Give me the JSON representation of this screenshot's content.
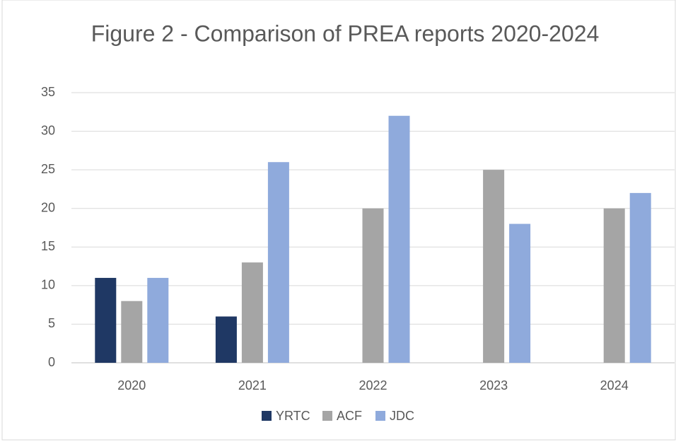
{
  "chart_data": {
    "type": "bar",
    "title": "Figure 2 - Comparison of PREA reports 2020-2024",
    "categories": [
      "2020",
      "2021",
      "2022",
      "2023",
      "2024"
    ],
    "series": [
      {
        "name": "YRTC",
        "color": "#1f3864",
        "values": [
          11,
          6,
          0,
          0,
          0
        ]
      },
      {
        "name": "ACF",
        "color": "#a5a5a5",
        "values": [
          8,
          13,
          20,
          25,
          20
        ]
      },
      {
        "name": "JDC",
        "color": "#8faadc",
        "values": [
          11,
          26,
          32,
          18,
          22
        ]
      }
    ],
    "ylim": [
      0,
      35
    ],
    "yticks": [
      0,
      5,
      10,
      15,
      20,
      25,
      30,
      35
    ],
    "grid": true,
    "legend": "bottom"
  }
}
